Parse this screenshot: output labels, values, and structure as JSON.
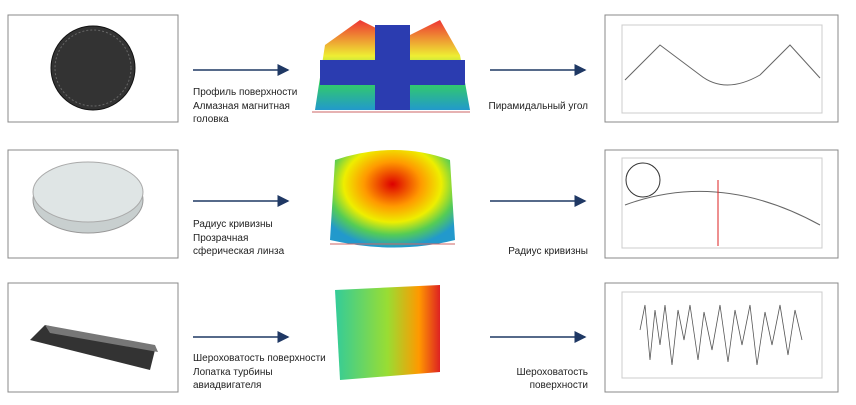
{
  "rows": [
    {
      "measure": "Профиль поверхности",
      "sample": "Алмазная магнитная головка",
      "result": "Пирамидальный угол"
    },
    {
      "measure": "Радиус кривизны",
      "sample": "Прозрачная сферическая линза",
      "result": "Радиус кривизны"
    },
    {
      "measure": "Шероховатость поверхности",
      "sample": "Лопатка турбины авиадвигателя",
      "result": "Шероховатость поверхности"
    }
  ]
}
